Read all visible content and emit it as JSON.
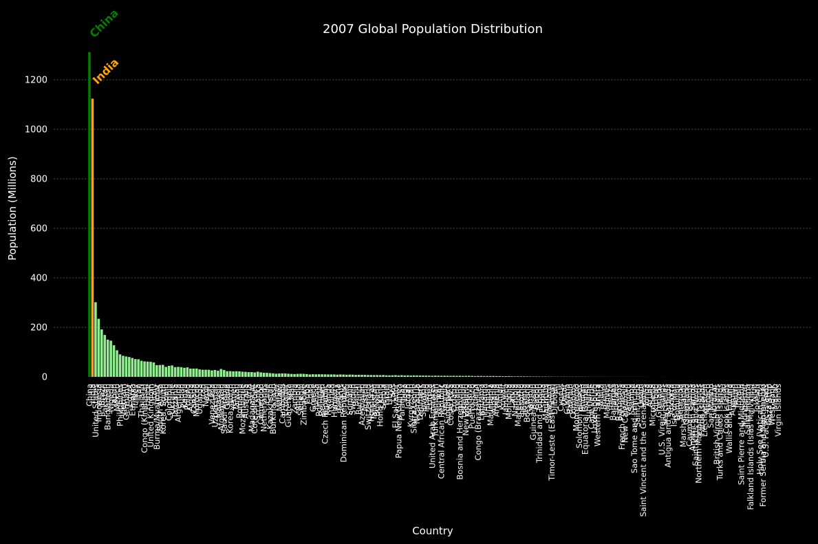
{
  "chart_data": {
    "type": "bar",
    "title": "2007 Global Population Distribution",
    "xlabel": "Country",
    "ylabel": "Population (Millions)",
    "ylim": [
      0,
      1350
    ],
    "yticks": [
      0,
      200,
      400,
      600,
      800,
      1000,
      1200
    ],
    "grid": "y-dashed",
    "colors": {
      "highlight_first": "#008000",
      "highlight_second": "#ffa500",
      "default": "#90ee90",
      "background": "#000000"
    },
    "annotations": [
      {
        "text": "China",
        "category": "China",
        "color": "#008000"
      },
      {
        "text": "India",
        "category": "India",
        "color": "#ffa500"
      }
    ],
    "categories": [
      "China",
      "India",
      "United States",
      "Indonesia",
      "Brazil",
      "Pakistan",
      "Bangladesh",
      "Nigeria",
      "Japan",
      "Mexico",
      "Philippines",
      "Vietnam",
      "Germany",
      "Egypt",
      "Ethiopia",
      "Turkey",
      "Iran",
      "Thailand",
      "Congo (Kinshasa)",
      "France",
      "United Kingdom",
      "Italy",
      "Burma/Myanmar",
      "South Africa",
      "Korea, South",
      "Spain",
      "Colombia",
      "Ukraine",
      "Tanzania",
      "Argentina",
      "Sudan",
      "Kenya",
      "Poland",
      "Algeria",
      "Canada",
      "Morocco",
      "Uganda",
      "Iraq",
      "Nepal",
      "Peru",
      "Venezuela",
      "Uzbekistan",
      "Malaysia",
      "Afghanistan",
      "Saudi Arabia",
      "Ghana",
      "Korea, North",
      "Yemen",
      "Taiwan",
      "Romania",
      "Mozambique",
      "Australia",
      "Syria",
      "Madagascar",
      "Cote d'Ivoire",
      "Sri Lanka",
      "Cameroon",
      "Netherlands",
      "Chile",
      "Kazakhstan",
      "Burkina Faso",
      "Niger",
      "Malawi",
      "Cambodia",
      "Ecuador",
      "Guatemala",
      "Mali",
      "Zambia",
      "Angola",
      "Senegal",
      "Zimbabwe",
      "Cuba",
      "Chad",
      "Greece",
      "Tunisia",
      "Portugal",
      "Belgium",
      "Czech Republic",
      "Rwanda",
      "Guinea",
      "Hungary",
      "Bolivia",
      "Belarus",
      "Dominican Republic",
      "Haiti",
      "Somalia",
      "Sweden",
      "Benin",
      "Burundi",
      "Azerbaijan",
      "Austria",
      "Switzerland",
      "Honduras",
      "Tajikistan",
      "Bulgaria",
      "Hong Kong",
      "Serbia",
      "Israel",
      "Libya",
      "Laos",
      "El Salvador",
      "Papua New Guinea",
      "Paraguay",
      "Togo",
      "Jordan",
      "Kyrgyzstan",
      "Sierra Leone",
      "Nicaragua",
      "Denmark",
      "Slovakia",
      "Finland",
      "Eritrea",
      "United Arab Emirates",
      "Turkmenistan",
      "Norway",
      "Central African Republic",
      "Georgia",
      "Singapore",
      "Costa Rica",
      "Croatia",
      "Ireland",
      "Bosnia and Herzegovina",
      "Lebanon",
      "New Zealand",
      "Moldova",
      "Puerto Rico",
      "Liberia",
      "Congo (Brazzaville)",
      "Lithuania",
      "Panama",
      "Uruguay",
      "Mauritania",
      "Albania",
      "Armenia",
      "Oman",
      "Kuwait",
      "Jamaica",
      "Mongolia",
      "Latvia",
      "Namibia",
      "Macedonia",
      "Lesotho",
      "Slovenia",
      "Botswana",
      "Gambia",
      "Guinea-Bissau",
      "Gabon",
      "Trinidad and Tobago",
      "Estonia",
      "Mauritius",
      "Swaziland",
      "Timor-Leste (East Timor)",
      "Djibouti",
      "Fiji",
      "Cyprus",
      "Qatar",
      "Guyana",
      "Bahrain",
      "Comoros",
      "Montenegro",
      "Solomon Islands",
      "Bhutan",
      "Equatorial Guinea",
      "Suriname",
      "Cape Verde",
      "Luxembourg",
      "Western Sahara",
      "Malta",
      "Brunei",
      "Maldives",
      "Belize",
      "Bahamas",
      "Iceland",
      "Barbados",
      "French Polynesia",
      "New Caledonia",
      "Vanuatu",
      "Samoa",
      "Sao Tome and Principe",
      "Saint Lucia",
      "Guam",
      "Saint Vincent and the Grenadines",
      "Tonga",
      "Aruba",
      "Micronesia",
      "Kiribati",
      "Grenada",
      "U.S. Virgin Islands",
      "Seychelles",
      "Antigua and Barbuda",
      "Andorra",
      "Isle of Man",
      "Dominica",
      "Bermuda",
      "Marshall Islands",
      "Greenland",
      "Cayman Islands",
      "American Samoa",
      "Saint Kitts and Nevis",
      "Northern Mariana Islands",
      "Faroe Islands",
      "Liechtenstein",
      "Monaco",
      "San Marino",
      "Gibraltar",
      "British Virgin Islands",
      "Turks and Caicos Islands",
      "Palau",
      "Cook Islands",
      "Wallis and Futuna",
      "Anguilla",
      "Nauru",
      "Tuvalu",
      "Saint Pierre and Miquelon",
      "Montserrat",
      "Saint Helena",
      "Falkland Islands (Islas Malvinas)",
      "Niue",
      "Tokelau",
      "Holy See (Vatican City)",
      "Former Serbia and Montenegro",
      "U.S. Pacific Islands",
      "Gaza Strip",
      "West Bank",
      "Macau",
      "Virgin Islands"
    ],
    "values": [
      1312,
      1124,
      301.6,
      234.7,
      191.9,
      169.3,
      150.4,
      146.3,
      127.7,
      107.5,
      91.1,
      85.3,
      82.4,
      80.3,
      76.5,
      71.9,
      71.2,
      65.1,
      62.6,
      61.7,
      60.8,
      58.1,
      47.4,
      47.9,
      48.5,
      40.4,
      44.4,
      46.3,
      39.4,
      40.3,
      39.4,
      36.9,
      38.5,
      33.3,
      33.4,
      33.8,
      30.3,
      28.9,
      28.9,
      28.6,
      26.0,
      27.8,
      24.8,
      31.9,
      27.6,
      23.0,
      23.3,
      22.2,
      22.9,
      22.3,
      20.9,
      20.4,
      19.3,
      19.4,
      18.0,
      20.9,
      18.1,
      16.6,
      16.3,
      15.3,
      14.3,
      12.9,
      13.6,
      13.9,
      13.8,
      12.7,
      12.0,
      11.5,
      12.3,
      12.5,
      12.3,
      11.4,
      9.9,
      10.7,
      10.3,
      10.6,
      10.4,
      10.2,
      9.9,
      9.9,
      9.9,
      9.1,
      9.7,
      9.4,
      8.7,
      9.1,
      9.0,
      8.1,
      8.4,
      8.1,
      8.2,
      7.6,
      7.5,
      7.1,
      7.3,
      6.9,
      7.4,
      6.4,
      6.0,
      6.5,
      6.9,
      5.8,
      6.7,
      5.7,
      6.1,
      5.3,
      6.1,
      5.7,
      5.5,
      5.4,
      5.2,
      4.9,
      4.4,
      5.1,
      4.6,
      4.4,
      4.6,
      4.5,
      4.1,
      4.5,
      4.1,
      4.5,
      3.9,
      4.1,
      4.3,
      3.9,
      3.2,
      3.8,
      3.6,
      3.2,
      3.4,
      3.3,
      3.6,
      3.0,
      3.2,
      2.5,
      2.8,
      2.9,
      2.3,
      2.1,
      2.1,
      2.1,
      2.0,
      1.8,
      1.7,
      1.5,
      1.5,
      1.3,
      1.3,
      1.3,
      1.1,
      1.1,
      0.8,
      0.9,
      0.8,
      0.9,
      0.8,
      0.7,
      0.7,
      0.7,
      0.6,
      0.6,
      0.6,
      0.5,
      0.4,
      0.5,
      0.4,
      0.4,
      0.4,
      0.3,
      0.3,
      0.3,
      0.3,
      0.3,
      0.3,
      0.2,
      0.2,
      0.2,
      0.2,
      0.2,
      0.2,
      0.2,
      0.1,
      0.1,
      0.1,
      0.1,
      0.1,
      0.1,
      0.1,
      0.1,
      0.1,
      0.1,
      0.1,
      0.1,
      0.1,
      0.1,
      0.1,
      0.1,
      0.1,
      0.1,
      0.05,
      0.04,
      0.03,
      0.03,
      0.03,
      0.02,
      0.02,
      0.02,
      0.02,
      0.02,
      0.01,
      0.01,
      0.01,
      0.01,
      0.01,
      0.01,
      0.01,
      0.01,
      0.01,
      0.01,
      0.01,
      0.01,
      0.01,
      0.01,
      0.01,
      0.01
    ]
  }
}
